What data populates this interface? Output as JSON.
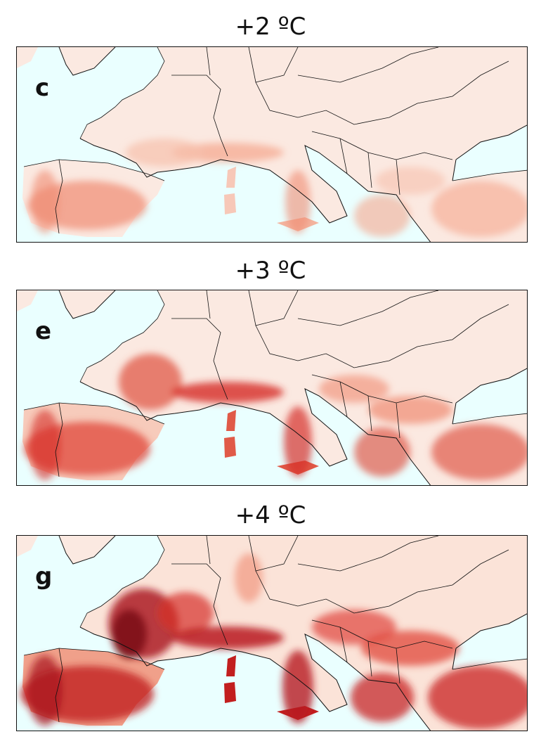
{
  "panels": [
    {
      "title": "+2 ºC",
      "label": "c"
    },
    {
      "title": "+3 ºC",
      "label": "e"
    },
    {
      "title": "+4 ºC",
      "label": "g"
    }
  ],
  "colors": {
    "sea": "#eaffff",
    "land_light": "#fbe9e1",
    "mid": "#f08a72",
    "strong": "#d62d26",
    "darkest": "#7a0c12",
    "border": "#111111"
  }
}
